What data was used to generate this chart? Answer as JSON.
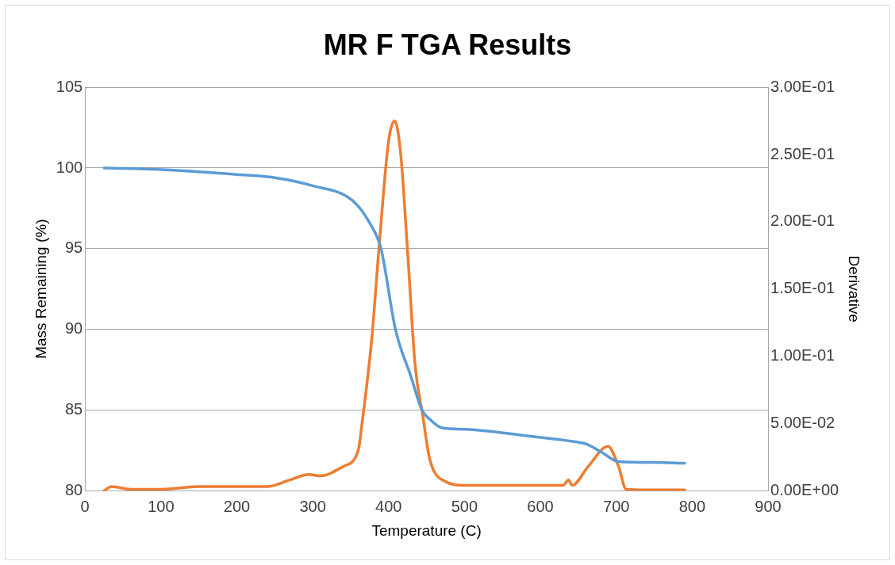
{
  "chart_data": {
    "type": "line",
    "title": "MR F TGA Results",
    "xlabel": "Temperature (C)",
    "ylabel": "Mass Remaining (%)",
    "y2label": "Derivative",
    "xlim": [
      0,
      900
    ],
    "xticks": [
      0,
      100,
      200,
      300,
      400,
      500,
      600,
      700,
      800,
      900
    ],
    "ylim": [
      80,
      105
    ],
    "yticks": [
      80,
      85,
      90,
      95,
      100,
      105
    ],
    "y2lim": [
      0,
      0.3
    ],
    "y2ticks": [
      {
        "value": 0,
        "label": "0.00E+00"
      },
      {
        "value": 0.05,
        "label": "5.00E-02"
      },
      {
        "value": 0.1,
        "label": "1.00E-01"
      },
      {
        "value": 0.15,
        "label": "1.50E-01"
      },
      {
        "value": 0.2,
        "label": "2.00E-01"
      },
      {
        "value": 0.25,
        "label": "2.50E-01"
      },
      {
        "value": 0.3,
        "label": "3.00E-01"
      }
    ],
    "grid": "y",
    "legend": false,
    "marker": "none",
    "line_style": "solid",
    "series": [
      {
        "color": "#5b9bd5",
        "x": [
          25,
          100,
          200,
          250,
          300,
          352,
          375,
          390,
          409,
          430,
          444,
          455,
          470,
          500,
          600,
          650,
          660,
          680,
          703,
          750,
          790
        ],
        "values": [
          100.0,
          99.9,
          99.6,
          99.4,
          98.9,
          98.0,
          96.6,
          95.0,
          90.0,
          87.0,
          85.0,
          84.4,
          83.9,
          83.8,
          83.3,
          83.0,
          82.9,
          82.4,
          81.8,
          81.75,
          81.7
        ]
      },
      {
        "color": "#ed7d31",
        "axis": "y2",
        "x": [
          25,
          35,
          60,
          100,
          150,
          240,
          270,
          295,
          310,
          340,
          360,
          365,
          378,
          387,
          400,
          408,
          416,
          425,
          435,
          445,
          454,
          474,
          500,
          600,
          630,
          637,
          642,
          663,
          689,
          703,
          713,
          750,
          790
        ],
        "values": [
          0,
          0.003,
          0.001,
          0.001,
          0.003,
          0.003,
          0.008,
          0.012,
          0.011,
          0.018,
          0.03,
          0.05,
          0.114,
          0.178,
          0.26,
          0.275,
          0.25,
          0.178,
          0.093,
          0.056,
          0.024,
          0.007,
          0.004,
          0.004,
          0.004,
          0.008,
          0.004,
          0.018,
          0.033,
          0.018,
          0.001,
          0.0005,
          0.0005
        ]
      }
    ]
  }
}
